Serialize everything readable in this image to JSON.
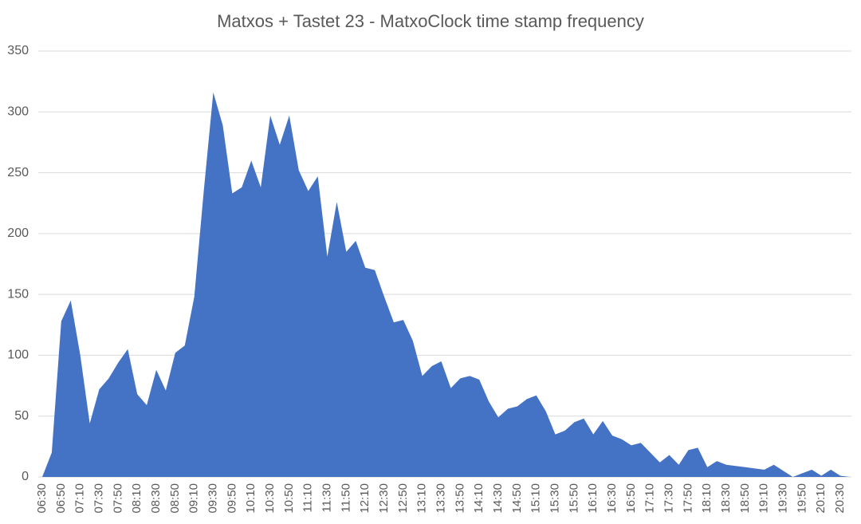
{
  "chart_data": {
    "type": "area",
    "title": "Matxos + Tastet 23 - MatxoClock time stamp frequency",
    "categories": [
      "06:30",
      null,
      "06:50",
      null,
      "07:10",
      null,
      "07:30",
      null,
      "07:50",
      null,
      "08:10",
      null,
      "08:30",
      null,
      "08:50",
      null,
      "09:10",
      null,
      "09:30",
      null,
      "09:50",
      null,
      "10:10",
      null,
      "10:30",
      null,
      "10:50",
      null,
      "11:10",
      null,
      "11:30",
      null,
      "11:50",
      null,
      "12:10",
      null,
      "12:30",
      null,
      "12:50",
      null,
      "13:10",
      null,
      "13:30",
      null,
      "13:50",
      null,
      "14:10",
      null,
      "14:30",
      null,
      "14:50",
      null,
      "15:10",
      null,
      "15:30",
      null,
      "15:50",
      null,
      "16:10",
      null,
      "16:30",
      null,
      "16:50",
      null,
      "17:10",
      null,
      "17:30",
      null,
      "17:50",
      null,
      "18:10",
      null,
      "18:30",
      null,
      "18:50",
      null,
      "19:10",
      null,
      "19:30",
      null,
      "19:50",
      null,
      "20:10",
      null,
      "20:30",
      null
    ],
    "values": [
      0,
      20,
      128,
      145,
      100,
      44,
      72,
      81,
      94,
      105,
      68,
      59,
      88,
      71,
      102,
      108,
      148,
      235,
      316,
      289,
      233,
      238,
      260,
      238,
      297,
      273,
      297,
      252,
      235,
      247,
      181,
      226,
      185,
      194,
      172,
      170,
      148,
      127,
      129,
      112,
      83,
      91,
      95,
      73,
      81,
      83,
      80,
      62,
      49,
      56,
      58,
      64,
      67,
      54,
      35,
      38,
      45,
      48,
      35,
      46,
      34,
      31,
      26,
      28,
      20,
      12,
      18,
      10,
      22,
      24,
      8,
      13,
      10,
      9,
      8,
      7,
      6,
      10,
      5,
      0,
      3,
      6,
      1,
      6,
      1,
      0
    ],
    "color": "#4472c4",
    "ylim": [
      0,
      350
    ],
    "yticks": [
      0,
      50,
      100,
      150,
      200,
      250,
      300,
      350
    ],
    "grid": true
  }
}
